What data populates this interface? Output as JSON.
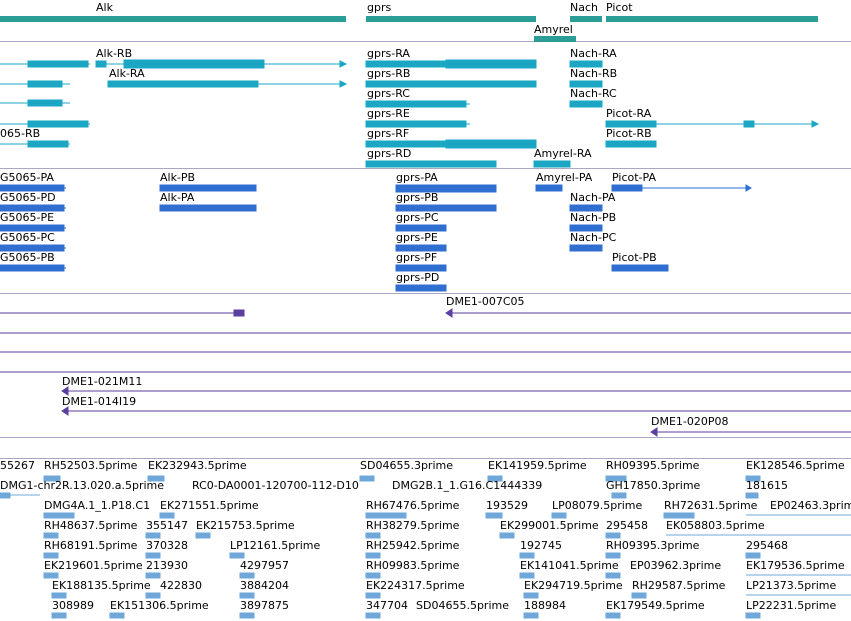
{
  "colors": {
    "genes": "#2a9d96",
    "transcripts": "#1ba7c3",
    "proteins": "#2f6fd1",
    "clones": "#5a3fa0",
    "ests": "#6fa8d8",
    "separator": "#a8a8c4"
  },
  "genes": [
    "Alk",
    "gprs",
    "Nach",
    "Picot",
    "Amyrel"
  ],
  "transcripts": [
    "Alk-RB",
    "Alk-RA",
    "gprs-RA",
    "gprs-RB",
    "gprs-RC",
    "gprs-RE",
    "gprs-RF",
    "gprs-RD",
    "Nach-RA",
    "Nach-RB",
    "Nach-RC",
    "Picot-RA",
    "Picot-RB",
    "Amyrel-RA",
    "065-RB"
  ],
  "proteins": [
    "G5065-PA",
    "G5065-PD",
    "G5065-PE",
    "G5065-PC",
    "G5065-PB",
    "Alk-PB",
    "Alk-PA",
    "gprs-PA",
    "gprs-PB",
    "gprs-PC",
    "gprs-PE",
    "gprs-PF",
    "gprs-PD",
    "Amyrel-PA",
    "Nach-PA",
    "Nach-PB",
    "Nach-PC",
    "Picot-PA",
    "Picot-PB"
  ],
  "clones": [
    "DME1-007C05",
    "DME1-021M11",
    "DME1-014I19",
    "DME1-020P08"
  ],
  "ests": [
    "55267",
    "RH52503.5prime",
    "EK232943.5prime",
    "SD04655.3prime",
    "EK141959.5prime",
    "RH09395.5prime",
    "EK128546.5prime",
    "DMG1-chr2R.13.020.a.5prime",
    "RC0-DA0001-120700-112-D10",
    "DMG2B.1_1.G16.C1444339",
    "GH17850.3prime",
    "181615",
    "DMG4A.1_1.P18.C1",
    "EK271551.5prime",
    "RH67476.5prime",
    "193529",
    "LP08079.5prime",
    "RH72631.5prime",
    "EP02463.3prime",
    "RH48637.5prime",
    "355147",
    "EK215753.5prime",
    "RH38279.5prime",
    "EK299001.5prime",
    "295458",
    "EK058803.5prime",
    "RH68191.5prime",
    "370328",
    "LP12161.5prime",
    "RH25942.5prime",
    "192745",
    "RH09395.3prime",
    "295468",
    "EK219601.5prime",
    "213930",
    "4297957",
    "RH09983.5prime",
    "EK141041.5prime",
    "EP03962.3prime",
    "EK179536.5prime",
    "EK188135.5prime",
    "422830",
    "3884204",
    "EK224317.5prime",
    "EK294719.5prime",
    "RH29587.5prime",
    "LP21373.5prime",
    "308989",
    "EK151306.5prime",
    "3897875",
    "347704",
    "SD04655.5prime",
    "188984",
    "EK179549.5prime",
    "LP22231.5prime"
  ]
}
